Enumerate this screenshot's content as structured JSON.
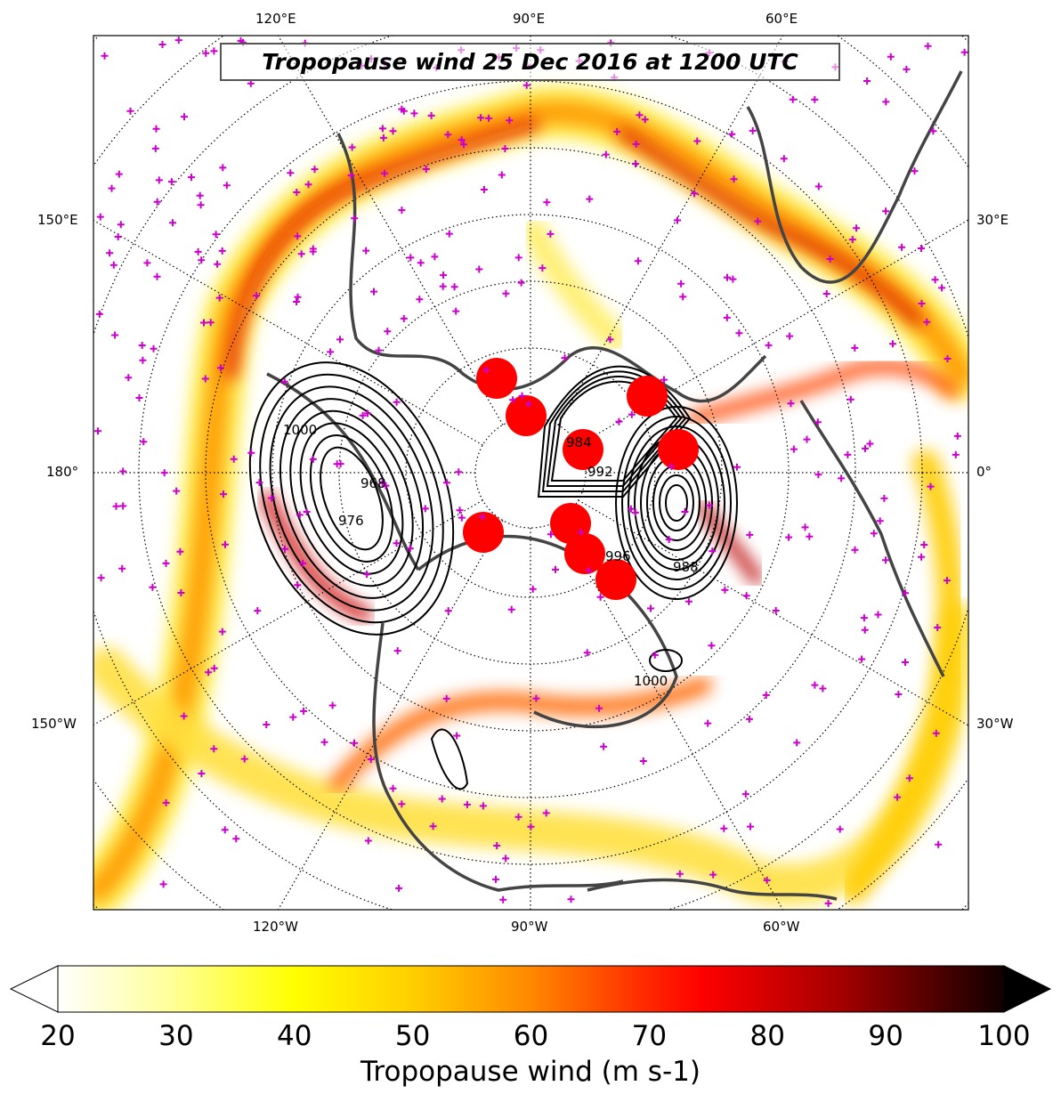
{
  "title": "Tropopause wind 25 Dec 2016 at 1200 UTC",
  "longitude_labels": {
    "top": [
      "120°E",
      "90°E",
      "60°E"
    ],
    "bottom": [
      "120°W",
      "90°W",
      "60°W"
    ],
    "left": [
      "150°E",
      "180°",
      "150°W"
    ],
    "right": [
      "30°E",
      "0°",
      "30°W"
    ]
  },
  "contour_labels": [
    "1000",
    "992",
    "984",
    "976",
    "968",
    "996",
    "988",
    "1000"
  ],
  "colorbar": {
    "label": "Tropopause wind (m s-1)",
    "ticks": [
      "20",
      "30",
      "40",
      "50",
      "60",
      "70",
      "80",
      "90",
      "100"
    ],
    "min": 20,
    "max": 100,
    "extend": "both",
    "colormap": "hot_r"
  },
  "colors": {
    "station_marker": "#cc00cc",
    "highlight_marker": "#ff0000",
    "coastline": "#444444",
    "contour": "#000000"
  }
}
